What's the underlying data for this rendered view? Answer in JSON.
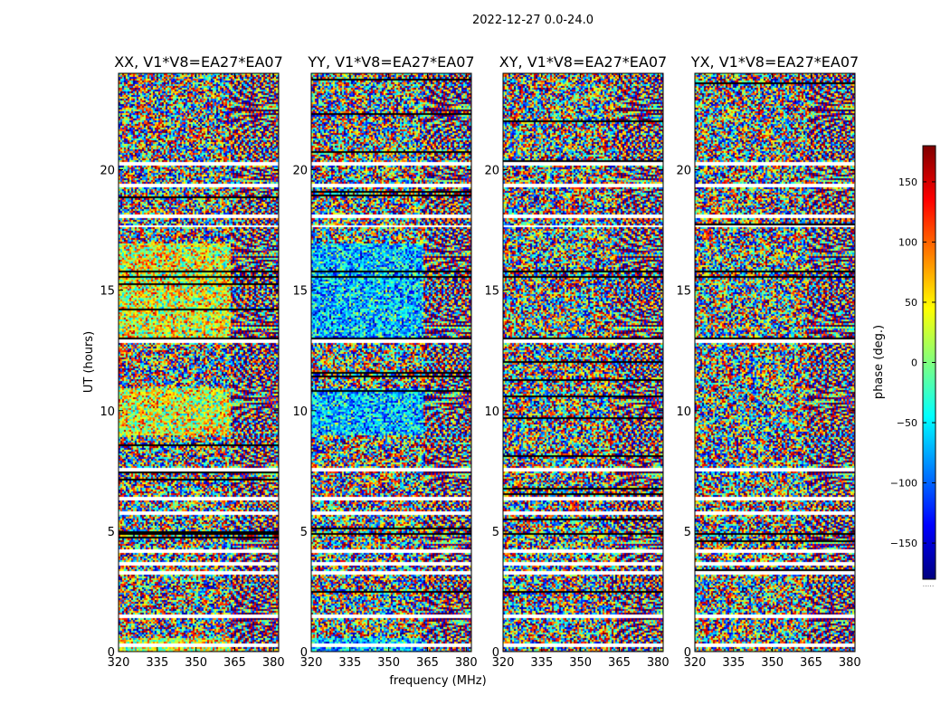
{
  "figure": {
    "suptitle": "2022-12-27 0.0-24.0",
    "xlabel": "frequency (MHz)",
    "ylabel": "UT (hours)",
    "colorbar_label": "phase (deg.)",
    "colorbar_extra": "....."
  },
  "chart_data": [
    {
      "type": "heatmap",
      "title": "XX, V1*V8=EA27*EA07",
      "polarization": "XX",
      "xlim": [
        320,
        382
      ],
      "ylim": [
        0,
        24
      ],
      "xticks": [
        320,
        335,
        350,
        365,
        380
      ],
      "yticks": [
        0,
        5,
        10,
        15,
        20
      ],
      "value_range": [
        -180,
        180
      ]
    },
    {
      "type": "heatmap",
      "title": "YY, V1*V8=EA27*EA07",
      "polarization": "YY",
      "xlim": [
        320,
        382
      ],
      "ylim": [
        0,
        24
      ],
      "xticks": [
        320,
        335,
        350,
        365,
        380
      ],
      "yticks": [
        0,
        5,
        10,
        15,
        20
      ],
      "value_range": [
        -180,
        180
      ]
    },
    {
      "type": "heatmap",
      "title": "XY, V1*V8=EA27*EA07",
      "polarization": "XY",
      "xlim": [
        320,
        382
      ],
      "ylim": [
        0,
        24
      ],
      "xticks": [
        320,
        335,
        350,
        365,
        380
      ],
      "yticks": [
        0,
        5,
        10,
        15,
        20
      ],
      "value_range": [
        -180,
        180
      ]
    },
    {
      "type": "heatmap",
      "title": "YX, V1*V8=EA27*EA07",
      "polarization": "YX",
      "xlim": [
        320,
        382
      ],
      "ylim": [
        0,
        24
      ],
      "xticks": [
        320,
        335,
        350,
        365,
        380
      ],
      "yticks": [
        0,
        5,
        10,
        15,
        20
      ],
      "value_range": [
        -180,
        180
      ]
    }
  ],
  "colorbar": {
    "range": [
      -180,
      180
    ],
    "ticks": [
      150,
      100,
      50,
      0,
      -50,
      -100,
      -150
    ],
    "colormap": "jet",
    "colors": [
      "#00007f",
      "#0000ff",
      "#007fff",
      "#00ffff",
      "#7fff7f",
      "#ffff00",
      "#ff7f00",
      "#ff0000",
      "#7f0000"
    ]
  }
}
